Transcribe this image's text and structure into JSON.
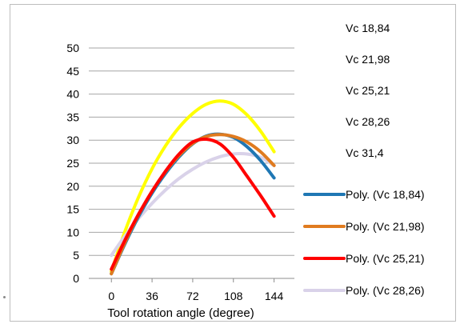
{
  "chart_data": {
    "type": "line",
    "xlabel": "Tool rotation angle (degree)",
    "ylabel": "",
    "title": "",
    "x_ticks": [
      0,
      36,
      72,
      108,
      144
    ],
    "ylim": [
      0,
      50
    ],
    "y_ticks": [
      0,
      5,
      10,
      15,
      20,
      25,
      30,
      35,
      40,
      45,
      50
    ],
    "xlim": [
      -20,
      162
    ],
    "grid": "horizontal",
    "legend_position": "right",
    "series": [
      {
        "name": "Vc 31,4",
        "color": "#ffff00",
        "x": [
          0,
          12,
          24,
          36,
          48,
          60,
          72,
          84,
          96,
          108,
          120,
          132,
          144
        ],
        "y": [
          1.5,
          10.2,
          17.6,
          23.8,
          28.8,
          32.8,
          35.8,
          37.8,
          38.5,
          37.8,
          35.5,
          32.0,
          27.5
        ]
      },
      {
        "name": "Vc 28,26",
        "color": "#d9d2e9",
        "x": [
          0,
          12,
          24,
          36,
          48,
          60,
          72,
          84,
          96,
          108,
          120,
          132,
          144
        ],
        "y": [
          5.0,
          9.2,
          13.0,
          16.3,
          19.2,
          21.7,
          23.7,
          25.3,
          26.4,
          27.0,
          27.0,
          26.3,
          24.5
        ]
      },
      {
        "name": "Vc 18,84",
        "color": "#1f77b4",
        "x": [
          0,
          12,
          24,
          36,
          48,
          60,
          72,
          84,
          96,
          108,
          120,
          132,
          144
        ],
        "y": [
          1.0,
          7.5,
          13.4,
          18.5,
          22.8,
          26.4,
          29.2,
          30.9,
          31.3,
          30.6,
          28.6,
          25.6,
          21.8
        ]
      },
      {
        "name": "Vc 21,98",
        "color": "#e07b1f",
        "x": [
          0,
          12,
          24,
          36,
          48,
          60,
          72,
          84,
          96,
          108,
          120,
          132,
          144
        ],
        "y": [
          1.0,
          7.8,
          13.8,
          18.9,
          23.2,
          26.7,
          29.3,
          30.8,
          31.2,
          30.8,
          29.6,
          27.5,
          24.5
        ]
      },
      {
        "name": "Vc 25,21",
        "color": "#ff0000",
        "x": [
          0,
          12,
          24,
          36,
          48,
          60,
          72,
          84,
          96,
          108,
          120,
          132,
          144
        ],
        "y": [
          2.0,
          8.3,
          13.9,
          18.9,
          23.3,
          27.0,
          29.6,
          30.2,
          29.2,
          26.3,
          22.2,
          18.0,
          13.5
        ]
      }
    ]
  },
  "legend": {
    "text_only": [
      "Vc 18,84",
      "Vc 21,98",
      "Vc 25,21",
      "Vc 28,26",
      "Vc 31,4"
    ],
    "with_lines": [
      {
        "label": "Poly. (Vc 18,84)",
        "color": "#1f77b4"
      },
      {
        "label": "Poly. (Vc 21,98)",
        "color": "#e07b1f"
      },
      {
        "label": "Poly. (Vc 25,21)",
        "color": "#ff0000"
      },
      {
        "label": "Poly. (Vc 28,26)",
        "color": "#d9d2e9"
      }
    ]
  }
}
